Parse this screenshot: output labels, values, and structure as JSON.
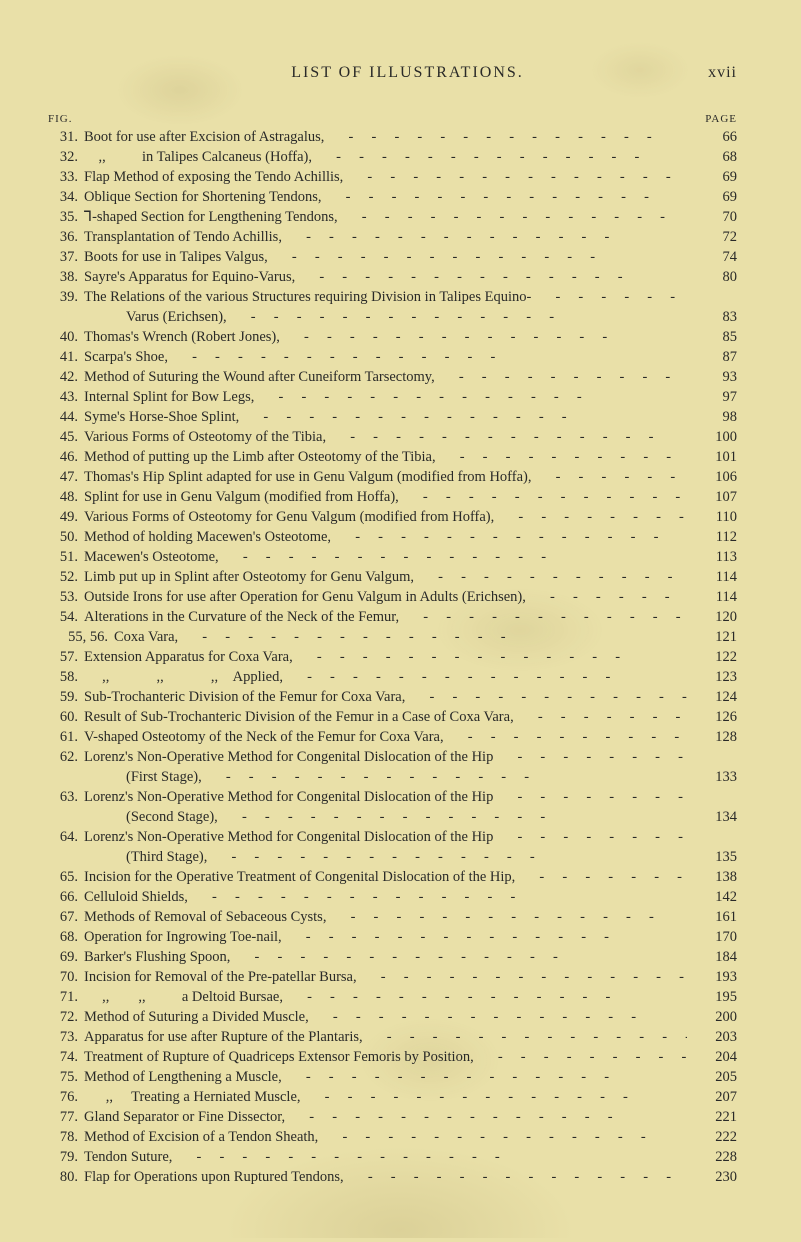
{
  "page": {
    "running_title": "LIST OF ILLUSTRATIONS.",
    "roman_page_number": "xvii",
    "column_label_fig": "FIG.",
    "column_label_page": "PAGE",
    "text_color": "#2a2a28",
    "paper_color": "#e9e0a8",
    "font_family": "Times New Roman",
    "body_fontsize_pt": 11,
    "header_fontsize_pt": 12,
    "column_label_fontsize_pt": 8
  },
  "entries": [
    {
      "fig": "31.",
      "desc": "Boot for use after Excision of Astragalus,",
      "page": "66"
    },
    {
      "fig": "32.",
      "desc": "    ,,          in Talipes Calcaneus (Hoffa),",
      "page": "68"
    },
    {
      "fig": "33.",
      "desc": "Flap Method of exposing the Tendo Achillis,",
      "page": "69"
    },
    {
      "fig": "34.",
      "desc": "Oblique Section for Shortening Tendons,",
      "page": "69"
    },
    {
      "fig": "35.",
      "desc": "⅂-shaped Section for Lengthening Tendons,",
      "page": "70"
    },
    {
      "fig": "36.",
      "desc": "Transplantation of Tendo Achillis,",
      "page": "72"
    },
    {
      "fig": "37.",
      "desc": "Boots for use in Talipes Valgus,",
      "page": "74"
    },
    {
      "fig": "38.",
      "desc": "Sayre's Apparatus for Equino-Varus,",
      "page": "80"
    },
    {
      "fig": "39.",
      "desc": "The Relations of the various Structures requiring Division in Talipes Equino-",
      "page": ""
    },
    {
      "fig": "",
      "desc": "Varus (Erichsen),",
      "page": "83",
      "cont": true
    },
    {
      "fig": "40.",
      "desc": "Thomas's Wrench (Robert Jones),",
      "page": "85"
    },
    {
      "fig": "41.",
      "desc": "Scarpa's Shoe,",
      "page": "87"
    },
    {
      "fig": "42.",
      "desc": "Method of Suturing the Wound after Cuneiform Tarsectomy,",
      "page": "93"
    },
    {
      "fig": "43.",
      "desc": "Internal Splint for Bow Legs,",
      "page": "97"
    },
    {
      "fig": "44.",
      "desc": "Syme's Horse-Shoe Splint,",
      "page": "98"
    },
    {
      "fig": "45.",
      "desc": "Various Forms of Osteotomy of the Tibia,",
      "page": "100"
    },
    {
      "fig": "46.",
      "desc": "Method of putting up the Limb after Osteotomy of the Tibia,",
      "page": "101"
    },
    {
      "fig": "47.",
      "desc": "Thomas's Hip Splint adapted for use in Genu Valgum (modified from Hoffa),",
      "page": "106"
    },
    {
      "fig": "48.",
      "desc": "Splint for use in Genu Valgum (modified from Hoffa),",
      "page": "107"
    },
    {
      "fig": "49.",
      "desc": "Various Forms of Osteotomy for Genu Valgum (modified from Hoffa),",
      "page": "110"
    },
    {
      "fig": "50.",
      "desc": "Method of holding Macewen's Osteotome,",
      "page": "112"
    },
    {
      "fig": "51.",
      "desc": "Macewen's Osteotome,",
      "page": "113"
    },
    {
      "fig": "52.",
      "desc": "Limb put up in Splint after Osteotomy for Genu Valgum,",
      "page": "114"
    },
    {
      "fig": "53.",
      "desc": "Outside Irons for use after Operation for Genu Valgum in Adults (Erichsen),",
      "page": "114"
    },
    {
      "fig": "54.",
      "desc": "Alterations in the Curvature of the Neck of the Femur,",
      "page": "120"
    },
    {
      "fig": "55, 56.",
      "desc": "Coxa Vara,",
      "page": "121",
      "combined": true
    },
    {
      "fig": "57.",
      "desc": "Extension Apparatus for Coxa Vara,",
      "page": "122"
    },
    {
      "fig": "58.",
      "desc": "     ,,             ,,             ,,    Applied,",
      "page": "123"
    },
    {
      "fig": "59.",
      "desc": "Sub-Trochanteric Division of the Femur for Coxa Vara,",
      "page": "124"
    },
    {
      "fig": "60.",
      "desc": "Result of Sub-Trochanteric Division of the Femur in a Case of Coxa Vara,",
      "page": "126"
    },
    {
      "fig": "61.",
      "desc": "V-shaped Osteotomy of the Neck of the Femur for Coxa Vara,",
      "page": "128"
    },
    {
      "fig": "62.",
      "desc": "Lorenz's Non-Operative Method for Congenital Dislocation of the Hip",
      "page": ""
    },
    {
      "fig": "",
      "desc": "(First Stage),",
      "page": "133",
      "cont": true
    },
    {
      "fig": "63.",
      "desc": "Lorenz's Non-Operative Method for Congenital Dislocation of the Hip",
      "page": ""
    },
    {
      "fig": "",
      "desc": "(Second Stage),",
      "page": "134",
      "cont": true
    },
    {
      "fig": "64.",
      "desc": "Lorenz's Non-Operative Method for Congenital Dislocation of the Hip",
      "page": ""
    },
    {
      "fig": "",
      "desc": "(Third Stage),",
      "page": "135",
      "cont": true
    },
    {
      "fig": "65.",
      "desc": "Incision for the Operative Treatment of Congenital Dislocation of the Hip,",
      "page": "138"
    },
    {
      "fig": "66.",
      "desc": "Celluloid Shields,",
      "page": "142"
    },
    {
      "fig": "67.",
      "desc": "Methods of Removal of Sebaceous Cysts,",
      "page": "161"
    },
    {
      "fig": "68.",
      "desc": "Operation for Ingrowing Toe-nail,",
      "page": "170"
    },
    {
      "fig": "69.",
      "desc": "Barker's Flushing Spoon,",
      "page": "184"
    },
    {
      "fig": "70.",
      "desc": "Incision for Removal of the Pre-patellar Bursa,",
      "page": "193"
    },
    {
      "fig": "71.",
      "desc": "     ,,        ,,          a Deltoid Bursae,",
      "page": "195"
    },
    {
      "fig": "72.",
      "desc": "Method of Suturing a Divided Muscle,",
      "page": "200"
    },
    {
      "fig": "73.",
      "desc": "Apparatus for use after Rupture of the Plantaris,",
      "page": "203"
    },
    {
      "fig": "74.",
      "desc": "Treatment of Rupture of Quadriceps Extensor Femoris by Position,",
      "page": "204"
    },
    {
      "fig": "75.",
      "desc": "Method of Lengthening a Muscle,",
      "page": "205"
    },
    {
      "fig": "76.",
      "desc": "      ,,     Treating a Herniated Muscle,",
      "page": "207"
    },
    {
      "fig": "77.",
      "desc": "Gland Separator or Fine Dissector,",
      "page": "221"
    },
    {
      "fig": "78.",
      "desc": "Method of Excision of a Tendon Sheath,",
      "page": "222"
    },
    {
      "fig": "79.",
      "desc": "Tendon Suture,",
      "page": "228"
    },
    {
      "fig": "80.",
      "desc": "Flap for Operations upon Ruptured Tendons,",
      "page": "230"
    }
  ]
}
